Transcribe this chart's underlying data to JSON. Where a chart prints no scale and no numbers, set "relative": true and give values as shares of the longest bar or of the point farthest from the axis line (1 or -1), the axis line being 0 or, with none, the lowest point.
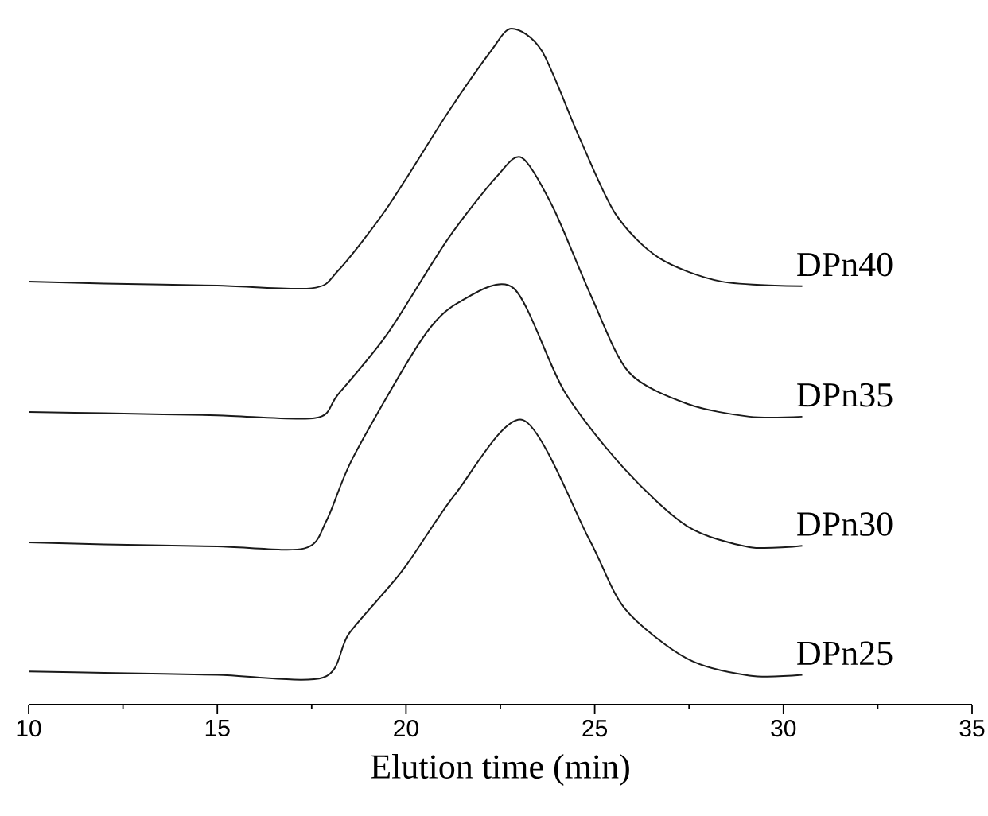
{
  "chart_data": {
    "type": "line",
    "relative": true,
    "xlabel": "Elution time (min)",
    "xlim": [
      10,
      35
    ],
    "xticks": [
      10,
      15,
      20,
      25,
      30,
      35
    ],
    "marker": "none",
    "line_style": "solid",
    "series": [
      {
        "name": "DPn40",
        "color": "#1a1a1a",
        "x": [
          10,
          12,
          15,
          17.5,
          18.2,
          19.5,
          21.1,
          22.25,
          22.8,
          23.6,
          24.6,
          25.55,
          26.7,
          28.35,
          30.5
        ],
        "values": [
          0.626,
          0.623,
          0.62,
          0.616,
          0.642,
          0.735,
          0.875,
          0.967,
          1.0,
          0.967,
          0.838,
          0.726,
          0.661,
          0.626,
          0.619
        ]
      },
      {
        "name": "DPn35",
        "color": "#1a1a1a",
        "x": [
          10,
          12,
          15,
          17.6,
          18.2,
          19.5,
          21.1,
          22.4,
          23.07,
          23.9,
          24.9,
          25.9,
          27.45,
          29.1,
          30.5
        ],
        "values": [
          0.433,
          0.431,
          0.428,
          0.424,
          0.459,
          0.548,
          0.688,
          0.781,
          0.809,
          0.735,
          0.605,
          0.492,
          0.445,
          0.426,
          0.426
        ]
      },
      {
        "name": "DPn30",
        "color": "#1a1a1a",
        "x": [
          10,
          12,
          15,
          17.3,
          17.9,
          18.6,
          20.4,
          21.4,
          22.85,
          24.2,
          25.8,
          27.45,
          29.1,
          30.5
        ],
        "values": [
          0.24,
          0.237,
          0.234,
          0.231,
          0.273,
          0.366,
          0.539,
          0.595,
          0.616,
          0.463,
          0.348,
          0.264,
          0.233,
          0.235
        ]
      },
      {
        "name": "DPn25",
        "color": "#1a1a1a",
        "x": [
          10,
          12,
          15,
          17.8,
          18.5,
          19.9,
          21.3,
          23.1,
          24.85,
          25.8,
          27.45,
          29.1,
          30.5
        ],
        "values": [
          0.049,
          0.047,
          0.044,
          0.04,
          0.106,
          0.198,
          0.311,
          0.421,
          0.245,
          0.142,
          0.068,
          0.043,
          0.044
        ]
      }
    ]
  }
}
